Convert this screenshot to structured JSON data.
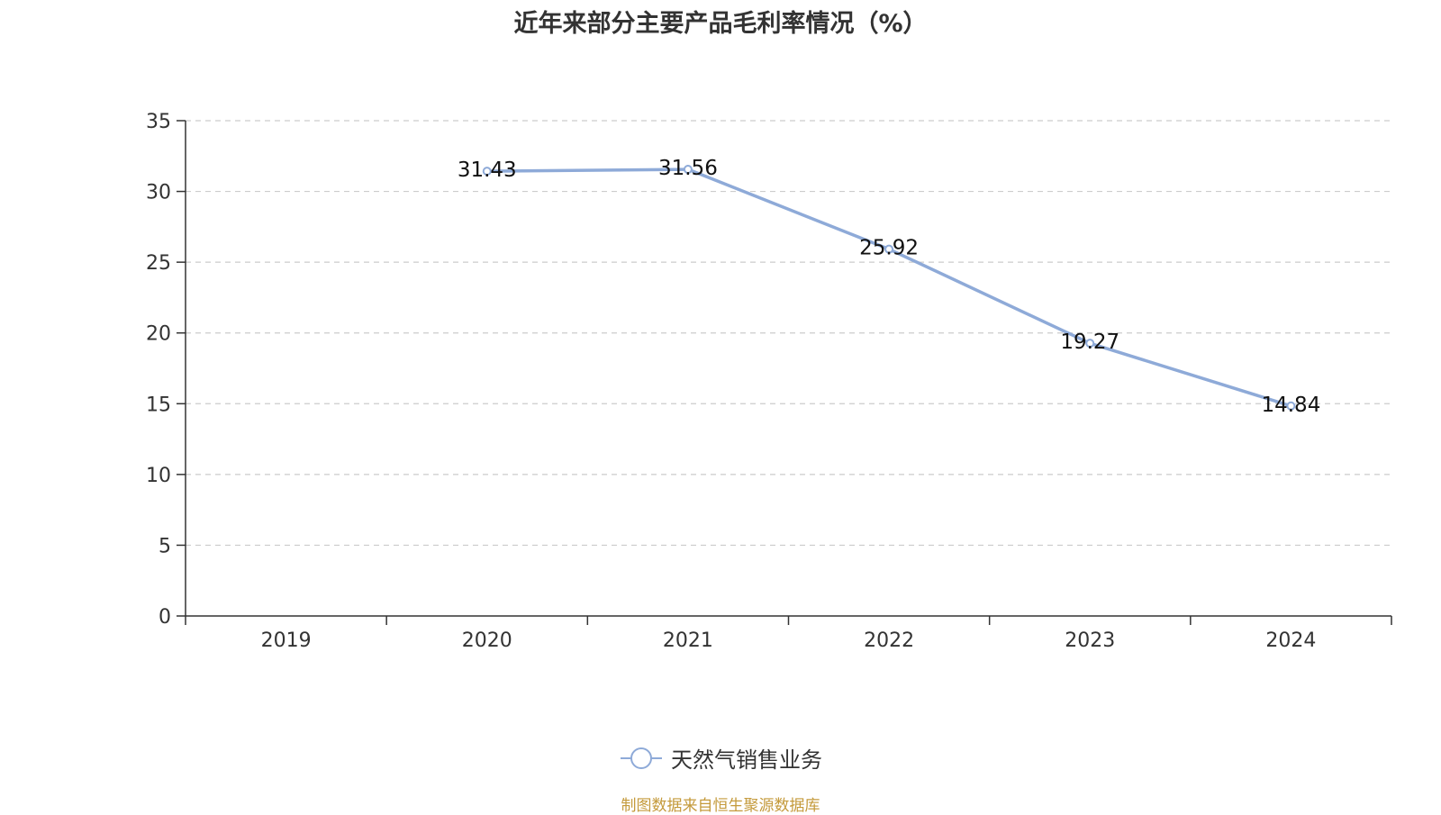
{
  "chart_data": {
    "type": "line",
    "title": "近年来部分主要产品毛利率情况（%）",
    "categories": [
      "2019",
      "2020",
      "2021",
      "2022",
      "2023",
      "2024"
    ],
    "series": [
      {
        "name": "天然气销售业务",
        "color": "#8eaad8",
        "values": [
          null,
          31.43,
          31.56,
          25.92,
          19.27,
          14.84
        ]
      }
    ],
    "value_labels": [
      "",
      "31.43",
      "31.56",
      "25.92",
      "19.27",
      "14.84"
    ],
    "ylim": [
      0,
      35
    ],
    "yticks": [
      0,
      5,
      10,
      15,
      20,
      25,
      30,
      35
    ],
    "ytick_labels": [
      "0",
      "5",
      "10",
      "15",
      "20",
      "25",
      "30",
      "35"
    ],
    "xlabel": "",
    "ylabel": "",
    "grid": true,
    "legend_position": "bottom"
  },
  "source_note": "制图数据来自恒生聚源数据库"
}
